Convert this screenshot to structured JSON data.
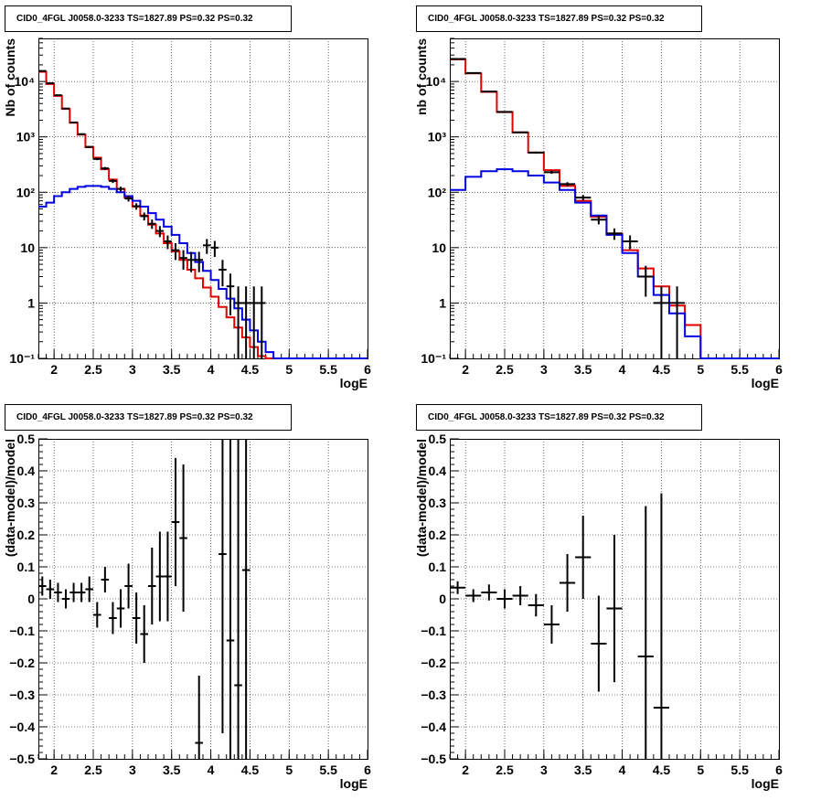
{
  "chart_data": [
    {
      "type": "line",
      "title": "CID0_4FGL J0058.0-3233 TS=1827.89 PS=0.32 PS=0.32",
      "xlabel": "logE",
      "ylabel": "Nb of counts",
      "xlim": [
        1.8,
        6.0
      ],
      "ylim": [
        0.1,
        60000
      ],
      "yscale": "log",
      "grid": true,
      "xticks": [
        "2",
        "2.5",
        "3",
        "3.5",
        "4",
        "4.5",
        "5",
        "5.5",
        "6"
      ],
      "yticks": [
        "10⁻¹",
        "1",
        "10",
        "10²",
        "10³",
        "10⁴"
      ],
      "bin_width": 0.1,
      "series": [
        {
          "color": "#e00000",
          "style": "step",
          "x": [
            1.85,
            1.95,
            2.05,
            2.15,
            2.25,
            2.35,
            2.45,
            2.55,
            2.65,
            2.75,
            2.85,
            2.95,
            3.05,
            3.15,
            3.25,
            3.35,
            3.45,
            3.55,
            3.65,
            3.75,
            3.85,
            3.95,
            4.05,
            4.15,
            4.25,
            4.35,
            4.45,
            4.55,
            4.65,
            4.75,
            4.85,
            4.95,
            5.05,
            5.15,
            5.25,
            5.35,
            5.45,
            5.55,
            5.65,
            5.75,
            5.85,
            5.95
          ],
          "values": [
            15000,
            9000,
            5500,
            3200,
            1800,
            1100,
            650,
            420,
            260,
            170,
            115,
            80,
            55,
            38,
            26,
            18,
            12,
            8.5,
            6,
            4,
            2.8,
            1.9,
            1.3,
            0.85,
            0.55,
            0.36,
            0.24,
            0.16,
            0.11,
            0.1,
            0.1,
            0.1,
            0.1,
            0.1,
            0.1,
            0.1,
            0.1,
            0.1,
            0.1,
            0.1,
            0.1,
            0.1
          ]
        },
        {
          "color": "#0000e0",
          "style": "step",
          "x": [
            1.85,
            1.95,
            2.05,
            2.15,
            2.25,
            2.35,
            2.45,
            2.55,
            2.65,
            2.75,
            2.85,
            2.95,
            3.05,
            3.15,
            3.25,
            3.35,
            3.45,
            3.55,
            3.65,
            3.75,
            3.85,
            3.95,
            4.05,
            4.15,
            4.25,
            4.35,
            4.45,
            4.55,
            4.65,
            4.75,
            4.85,
            4.95,
            5.05,
            5.15,
            5.25,
            5.35,
            5.45,
            5.55,
            5.65,
            5.75,
            5.85,
            5.95
          ],
          "values": [
            55,
            65,
            85,
            100,
            115,
            125,
            130,
            130,
            125,
            115,
            100,
            85,
            70,
            55,
            42,
            32,
            24,
            17,
            12,
            8,
            5.5,
            3.8,
            2.6,
            1.8,
            1.2,
            0.8,
            0.5,
            0.32,
            0.2,
            0.13,
            0.1,
            0.1,
            0.1,
            0.1,
            0.1,
            0.1,
            0.1,
            0.1,
            0.1,
            0.1,
            0.1,
            0.1
          ]
        },
        {
          "color": "#000000",
          "style": "points",
          "x": [
            1.85,
            1.95,
            2.05,
            2.15,
            2.25,
            2.35,
            2.45,
            2.55,
            2.65,
            2.75,
            2.85,
            2.95,
            3.05,
            3.15,
            3.25,
            3.35,
            3.45,
            3.55,
            3.65,
            3.75,
            3.85,
            3.95,
            4.05,
            4.15,
            4.25,
            4.35,
            4.45,
            4.55,
            4.65
          ],
          "values": [
            15500,
            9300,
            5650,
            3250,
            1820,
            1120,
            660,
            400,
            270,
            160,
            115,
            77,
            56,
            37,
            27,
            20,
            13,
            9,
            6.5,
            6,
            6,
            11,
            10,
            4,
            2,
            1,
            1,
            1,
            1
          ],
          "errors": [
            125,
            96,
            75,
            57,
            43,
            33,
            26,
            20,
            16,
            13,
            11,
            9,
            7.5,
            6,
            5.2,
            4.5,
            3.6,
            3,
            2.5,
            2.4,
            2.4,
            3.3,
            3.2,
            2,
            1.4,
            1,
            1,
            1,
            1
          ]
        }
      ]
    },
    {
      "type": "line",
      "title": "CID0_4FGL J0058.0-3233 TS=1827.89 PS=0.32 PS=0.32",
      "xlabel": "logE",
      "ylabel": "nb of counts",
      "xlim": [
        1.8,
        6.0
      ],
      "ylim": [
        0.1,
        60000
      ],
      "yscale": "log",
      "grid": true,
      "xticks": [
        "2",
        "2.5",
        "3",
        "3.5",
        "4",
        "4.5",
        "5",
        "5.5",
        "6"
      ],
      "yticks": [
        "10⁻¹",
        "1",
        "10",
        "10²",
        "10³",
        "10⁴"
      ],
      "bin_width": 0.2,
      "series": [
        {
          "color": "#e00000",
          "style": "step",
          "x": [
            1.9,
            2.1,
            2.3,
            2.5,
            2.7,
            2.9,
            3.1,
            3.3,
            3.5,
            3.7,
            3.9,
            4.1,
            4.3,
            4.5,
            4.7,
            4.9,
            5.1,
            5.3,
            5.5,
            5.7,
            5.9
          ],
          "values": [
            25000,
            14000,
            6500,
            2800,
            1200,
            520,
            250,
            130,
            70,
            36,
            18,
            9,
            4.2,
            2,
            0.9,
            0.4,
            0.1,
            0.1,
            0.1,
            0.1,
            0.1
          ]
        },
        {
          "color": "#0000e0",
          "style": "step",
          "x": [
            1.9,
            2.1,
            2.3,
            2.5,
            2.7,
            2.9,
            3.1,
            3.3,
            3.5,
            3.7,
            3.9,
            4.1,
            4.3,
            4.5,
            4.7,
            4.9,
            5.1,
            5.3,
            5.5,
            5.7,
            5.9
          ],
          "values": [
            110,
            190,
            240,
            260,
            240,
            200,
            150,
            110,
            65,
            38,
            17,
            8,
            3,
            1.4,
            0.65,
            0.25,
            0.1,
            0.1,
            0.1,
            0.1,
            0.1
          ]
        },
        {
          "color": "#000000",
          "style": "points",
          "x": [
            1.9,
            2.1,
            2.3,
            2.5,
            2.7,
            2.9,
            3.1,
            3.3,
            3.5,
            3.7,
            3.9,
            4.1,
            4.3,
            4.5,
            4.7
          ],
          "values": [
            25500,
            14200,
            6600,
            2820,
            1210,
            520,
            230,
            140,
            80,
            32,
            18,
            13,
            3,
            1,
            1
          ],
          "errors": [
            160,
            119,
            81,
            53,
            35,
            23,
            15,
            12,
            9,
            5.7,
            4.2,
            3.6,
            1.7,
            1,
            1
          ]
        }
      ]
    },
    {
      "type": "scatter",
      "title": "CID0_4FGL J0058.0-3233 TS=1827.89 PS=0.32 PS=0.32",
      "xlabel": "logE",
      "ylabel": "(data-model)/model",
      "xlim": [
        1.8,
        6.0
      ],
      "ylim": [
        -0.5,
        0.5
      ],
      "grid": true,
      "xticks": [
        "2",
        "2.5",
        "3",
        "3.5",
        "4",
        "4.5",
        "5",
        "5.5",
        "6"
      ],
      "yticks": [
        "−0.5",
        "−0.4",
        "−0.3",
        "−0.2",
        "−0.1",
        "0",
        "0.1",
        "0.2",
        "0.3",
        "0.4",
        "0.5"
      ],
      "bin_width": 0.1,
      "x": [
        1.85,
        1.95,
        2.05,
        2.15,
        2.25,
        2.35,
        2.45,
        2.55,
        2.65,
        2.75,
        2.85,
        2.95,
        3.05,
        3.15,
        3.25,
        3.35,
        3.45,
        3.55,
        3.65,
        3.85,
        4.15,
        4.25,
        4.35,
        4.45
      ],
      "values": [
        0.04,
        0.03,
        0.02,
        0.0,
        0.02,
        0.02,
        0.03,
        -0.05,
        0.06,
        -0.06,
        -0.03,
        0.04,
        -0.06,
        -0.11,
        0.04,
        0.07,
        0.07,
        0.24,
        0.19,
        -0.45,
        0.14,
        -0.13,
        -0.27,
        0.09
      ],
      "errors": [
        0.03,
        0.03,
        0.03,
        0.03,
        0.03,
        0.03,
        0.04,
        0.04,
        0.04,
        0.05,
        0.06,
        0.07,
        0.08,
        0.09,
        0.12,
        0.14,
        0.14,
        0.2,
        0.23,
        0.21,
        0.56,
        0.63,
        0.77,
        0.63
      ]
    },
    {
      "type": "scatter",
      "title": "CID0_4FGL J0058.0-3233 TS=1827.89 PS=0.32 PS=0.32",
      "xlabel": "logE",
      "ylabel": "(data-model)/model",
      "xlim": [
        1.8,
        6.0
      ],
      "ylim": [
        -0.5,
        0.5
      ],
      "grid": true,
      "xticks": [
        "2",
        "2.5",
        "3",
        "3.5",
        "4",
        "4.5",
        "5",
        "5.5",
        "6"
      ],
      "yticks": [
        "−0.5",
        "−0.4",
        "−0.3",
        "−0.2",
        "−0.1",
        "0",
        "0.1",
        "0.2",
        "0.3",
        "0.4",
        "0.5"
      ],
      "bin_width": 0.2,
      "x": [
        1.9,
        2.1,
        2.3,
        2.5,
        2.7,
        2.9,
        3.1,
        3.3,
        3.5,
        3.7,
        3.9,
        4.3,
        4.5
      ],
      "values": [
        0.035,
        0.01,
        0.02,
        0.0,
        0.01,
        -0.02,
        -0.08,
        0.05,
        0.13,
        -0.14,
        -0.03,
        -0.18,
        -0.34
      ],
      "errors": [
        0.02,
        0.02,
        0.025,
        0.03,
        0.03,
        0.035,
        0.06,
        0.09,
        0.13,
        0.15,
        0.23,
        0.47,
        0.67
      ]
    }
  ]
}
